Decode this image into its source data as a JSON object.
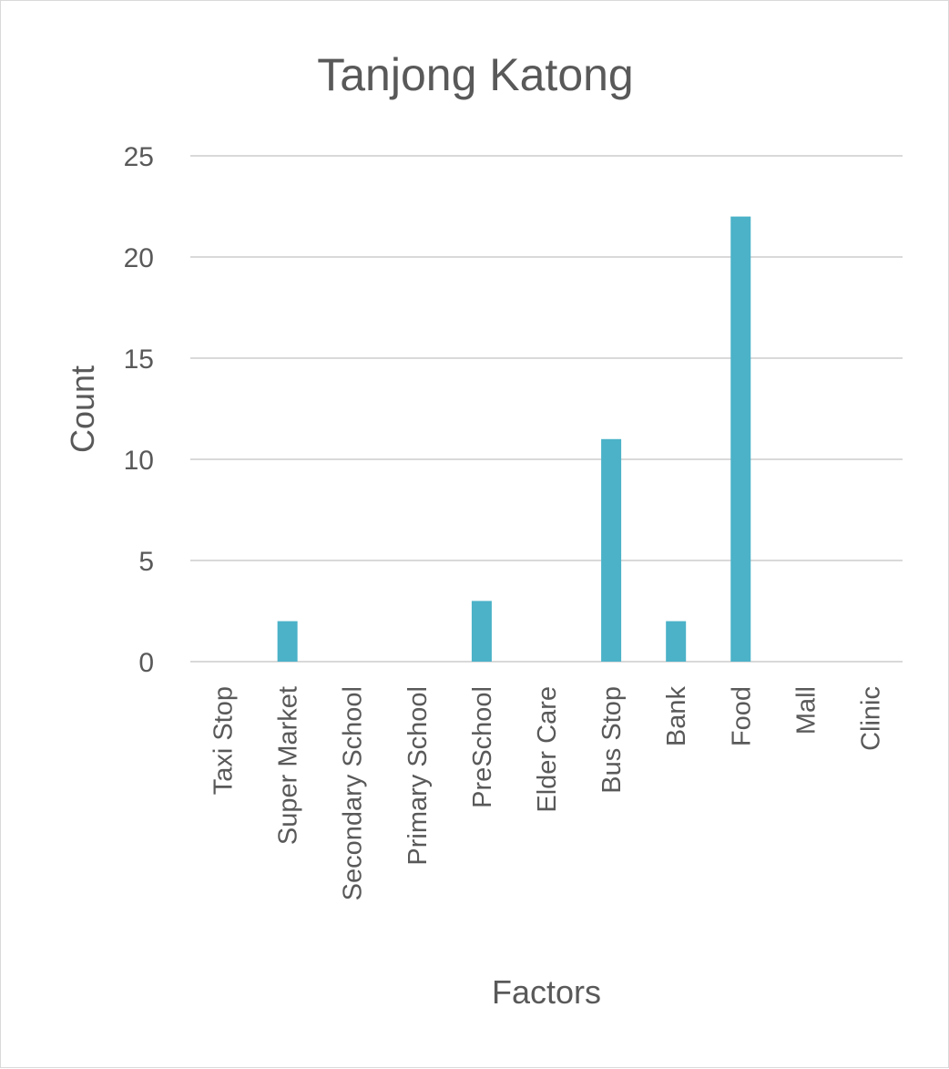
{
  "chart_data": {
    "type": "bar",
    "title": "Tanjong Katong",
    "xlabel": "Factors",
    "ylabel": "Count",
    "categories": [
      "Taxi Stop",
      "Super Market",
      "Secondary School",
      "Primary School",
      "PreSchool",
      "Elder Care",
      "Bus Stop",
      "Bank",
      "Food",
      "Mall",
      "Clinic"
    ],
    "values": [
      0,
      2,
      0,
      0,
      3,
      0,
      11,
      2,
      22,
      0,
      0
    ],
    "ylim": [
      0,
      25
    ],
    "yticks": [
      0,
      5,
      10,
      15,
      20,
      25
    ],
    "grid": true,
    "colors": {
      "bar": "#4BB2C8",
      "grid": "#d9d9d9",
      "text": "#595959"
    }
  }
}
